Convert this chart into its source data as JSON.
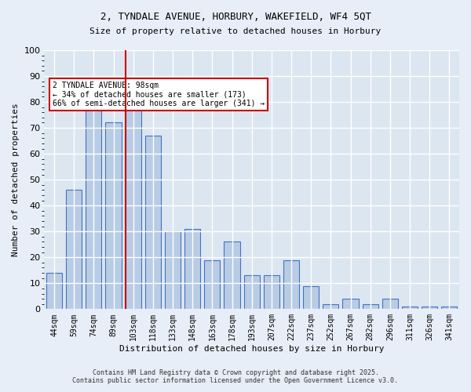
{
  "title_line1": "2, TYNDALE AVENUE, HORBURY, WAKEFIELD, WF4 5QT",
  "title_line2": "Size of property relative to detached houses in Horbury",
  "xlabel": "Distribution of detached houses by size in Horbury",
  "ylabel": "Number of detached properties",
  "categories": [
    "44sqm",
    "59sqm",
    "74sqm",
    "89sqm",
    "103sqm",
    "118sqm",
    "133sqm",
    "148sqm",
    "163sqm",
    "178sqm",
    "193sqm",
    "207sqm",
    "222sqm",
    "237sqm",
    "252sqm",
    "267sqm",
    "282sqm",
    "296sqm",
    "311sqm",
    "326sqm",
    "341sqm"
  ],
  "values": [
    14,
    46,
    81,
    72,
    78,
    67,
    30,
    31,
    19,
    26,
    13,
    13,
    19,
    9,
    2,
    4,
    2,
    4,
    1,
    1,
    1
  ],
  "bar_color": "#b8cce4",
  "bar_edge_color": "#4472c4",
  "property_bar_index": 4,
  "vline_x": 4,
  "annotation_text": "2 TYNDALE AVENUE: 98sqm\n← 34% of detached houses are smaller (173)\n66% of semi-detached houses are larger (341) →",
  "annotation_box_color": "#ffffff",
  "annotation_box_edge": "#cc0000",
  "vline_color": "#cc0000",
  "background_color": "#e8eef7",
  "plot_bg_color": "#dce6f0",
  "grid_color": "#ffffff",
  "footer_line1": "Contains HM Land Registry data © Crown copyright and database right 2025.",
  "footer_line2": "Contains public sector information licensed under the Open Government Licence v3.0.",
  "ylim": [
    0,
    100
  ]
}
